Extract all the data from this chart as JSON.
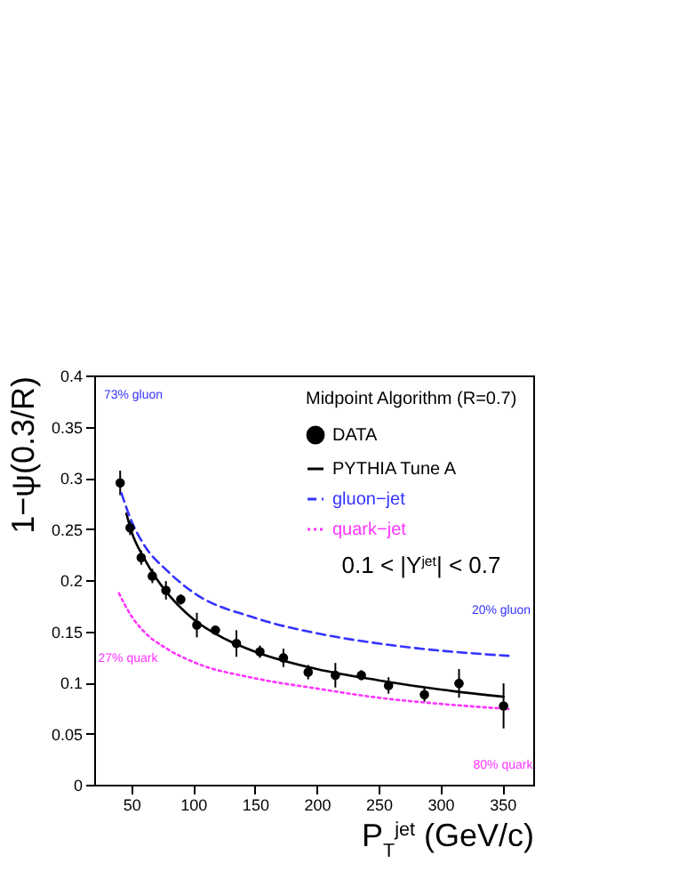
{
  "chart_data": {
    "type": "scatter",
    "xlabel": "P$_{T}$$^{jet}$ (GeV/c)",
    "ylabel": "1−ψ(0.3/R)",
    "legend_title": "Midpoint Algorithm (R=0.7)",
    "legend": "top right",
    "xlim": [
      20,
      375
    ],
    "xticks": [
      50,
      100,
      150,
      200,
      250,
      300,
      350
    ],
    "ylim": [
      0,
      0.4
    ],
    "yticks": [
      0,
      0.05,
      0.1,
      0.15,
      0.2,
      0.25,
      0.3,
      0.35,
      0.4
    ],
    "grid": false,
    "annotations": [
      "0.1 < |Y$^{jet}$| < 0.7",
      "73% gluon",
      "20% gluon",
      "27% quark",
      "80% quark"
    ],
    "series": [
      {
        "name": "DATA",
        "marker": "circle",
        "color": "#000000",
        "x": [
          41,
          49,
          58,
          67,
          78,
          90,
          103,
          118,
          135,
          154,
          173,
          193,
          215,
          236,
          258,
          287,
          315,
          351
        ],
        "values": [
          0.295,
          0.251,
          0.222,
          0.204,
          0.19,
          0.181,
          0.156,
          0.151,
          0.138,
          0.13,
          0.124,
          0.11,
          0.107,
          0.107,
          0.097,
          0.088,
          0.099,
          0.077
        ],
        "errors": [
          0.012,
          0.007,
          0.007,
          0.007,
          0.009,
          0.005,
          0.012,
          0.004,
          0.013,
          0.006,
          0.009,
          0.007,
          0.012,
          0.005,
          0.008,
          0.007,
          0.014,
          0.022
        ]
      },
      {
        "name": "PYTHIA Tune A",
        "type": "line",
        "line_style": "solid",
        "color": "#000000",
        "x": [
          46,
          50,
          60,
          70,
          80,
          100,
          125,
          150,
          200,
          250,
          300,
          351
        ],
        "values": [
          0.265,
          0.248,
          0.222,
          0.202,
          0.186,
          0.162,
          0.143,
          0.13,
          0.113,
          0.102,
          0.093,
          0.086
        ]
      },
      {
        "name": "gluon−jet",
        "type": "line",
        "line_style": "dashed",
        "color": "#3333ff",
        "x": [
          42,
          50,
          60,
          80,
          100,
          150,
          200,
          250,
          300,
          355
        ],
        "values": [
          0.285,
          0.258,
          0.235,
          0.208,
          0.188,
          0.163,
          0.148,
          0.138,
          0.131,
          0.126
        ]
      },
      {
        "name": "quark−jet",
        "type": "line",
        "line_style": "dotted",
        "color": "#ff33ff",
        "x": [
          40,
          50,
          60,
          80,
          100,
          150,
          200,
          250,
          300,
          355
        ],
        "values": [
          0.187,
          0.165,
          0.15,
          0.132,
          0.12,
          0.104,
          0.094,
          0.085,
          0.079,
          0.074
        ]
      }
    ]
  }
}
